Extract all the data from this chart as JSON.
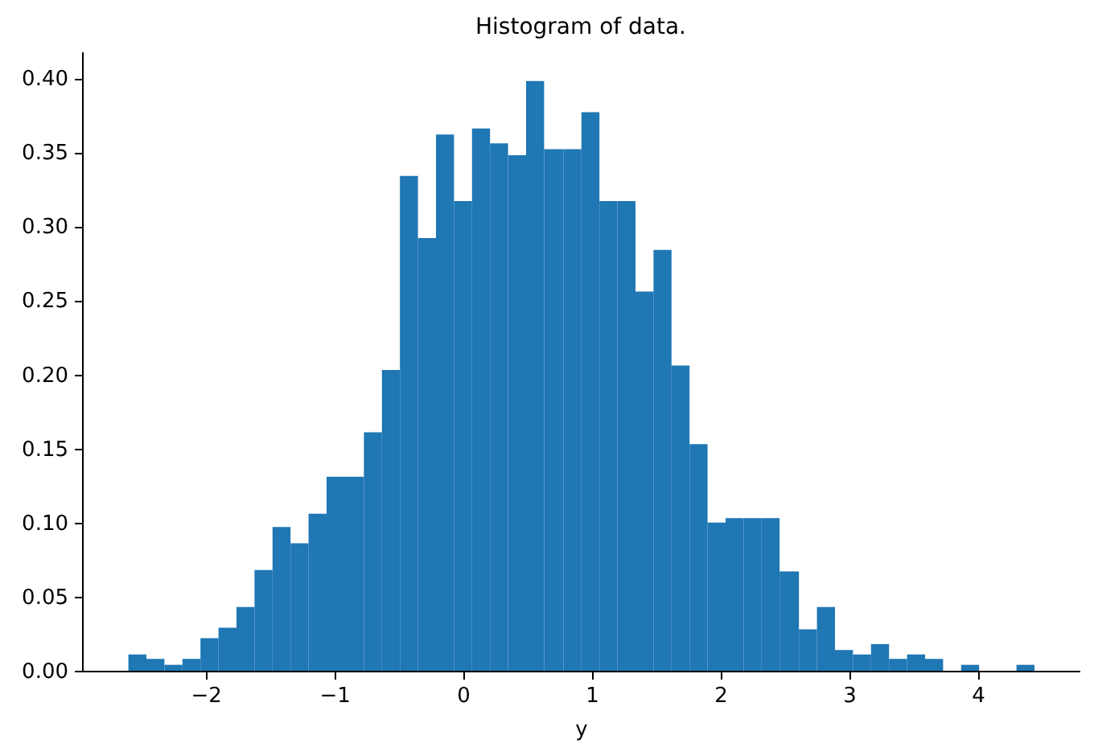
{
  "chart_data": {
    "type": "histogram",
    "title": "Histogram of data.",
    "xlabel": "y",
    "color": "#1f77b4",
    "bins": [
      -2.6,
      -2.46,
      -2.32,
      -2.18,
      -2.04,
      -1.9,
      -1.76,
      -1.62,
      -1.48,
      -1.34,
      -1.2,
      -1.06,
      -0.91,
      -0.77,
      -0.63,
      -0.49,
      -0.35,
      -0.21,
      -0.07,
      0.07,
      0.21,
      0.35,
      0.49,
      0.63,
      0.78,
      0.92,
      1.06,
      1.2,
      1.34,
      1.48,
      1.62,
      1.76,
      1.9,
      2.04,
      2.18,
      2.32,
      2.46,
      2.61,
      2.75,
      2.89,
      3.03,
      3.17,
      3.31,
      3.45,
      3.59,
      3.73,
      3.87,
      4.01,
      4.3,
      4.44
    ],
    "values": [
      0.011,
      0.008,
      0.004,
      0.008,
      0.022,
      0.029,
      0.043,
      0.068,
      0.097,
      0.086,
      0.106,
      0.131,
      0.131,
      0.161,
      0.203,
      0.334,
      0.292,
      0.362,
      0.317,
      0.366,
      0.356,
      0.348,
      0.398,
      0.352,
      0.352,
      0.377,
      0.317,
      0.317,
      0.256,
      0.284,
      0.206,
      0.153,
      0.1,
      0.103,
      0.103,
      0.103,
      0.067,
      0.028,
      0.043,
      0.014,
      0.011,
      0.018,
      0.008,
      0.011,
      0.008,
      0,
      0.004,
      0,
      0.004
    ],
    "xlim": [
      -2.96,
      4.79
    ],
    "ylim": [
      0,
      0.418
    ],
    "xticks": [
      {
        "value": -2,
        "label": "−2"
      },
      {
        "value": -1,
        "label": "−1"
      },
      0,
      1,
      2,
      3,
      4
    ],
    "yticks": [
      {
        "value": 0,
        "label": "0.00"
      },
      0.05,
      {
        "value": 0.1,
        "label": "0.10"
      },
      0.15,
      {
        "value": 0.2,
        "label": "0.20"
      },
      0.25,
      {
        "value": 0.3,
        "label": "0.30"
      },
      0.35,
      {
        "value": 0.4,
        "label": "0.40"
      }
    ]
  }
}
